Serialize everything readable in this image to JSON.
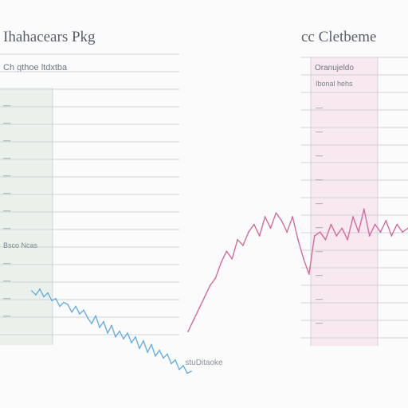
{
  "chart_data": [
    {
      "type": "line",
      "title": "Ihahacears Pkg",
      "subtitle": "Ch gthoe ltdxtba",
      "row_labels": [
        "—",
        "—",
        "—",
        "—",
        "—",
        "—",
        "—",
        "—",
        "Bsco Ncas",
        "—",
        "—",
        "—",
        "—"
      ],
      "grid": true,
      "panel_shade": "#e9f1ea",
      "series": [
        {
          "color": "#6aaee0",
          "x": [
            0,
            1,
            2,
            3,
            4,
            5,
            6,
            7,
            8,
            9,
            10,
            11,
            12,
            13,
            14,
            15,
            16,
            17,
            18,
            19,
            20,
            21,
            22,
            23,
            24,
            25,
            26,
            27,
            28,
            29,
            30,
            31,
            32,
            33,
            34,
            35,
            36,
            37,
            38,
            39,
            40
          ],
          "y": [
            52,
            50,
            53,
            49,
            51,
            47,
            48,
            44,
            46,
            45,
            41,
            44,
            40,
            42,
            38,
            35,
            39,
            33,
            36,
            30,
            34,
            28,
            31,
            27,
            30,
            25,
            28,
            22,
            26,
            20,
            24,
            18,
            21,
            17,
            19,
            14,
            16,
            11,
            13,
            9,
            10
          ]
        }
      ],
      "ylim": [
        0,
        100
      ]
    },
    {
      "type": "line",
      "title": "cc Cletbeme",
      "subtitle": "Oranujeldo",
      "row_labels": [
        "Ibonal hehs",
        "—",
        "—",
        "—",
        "—",
        "—",
        "—",
        "—",
        "—",
        "—",
        "—"
      ],
      "grid": true,
      "panel_shade": "#f8e8ef",
      "series": [
        {
          "color": "#d36b9d",
          "x": [
            0,
            1,
            2,
            3,
            4,
            5,
            6,
            7,
            8,
            9,
            10,
            11,
            12,
            13,
            14,
            15,
            16,
            17,
            18,
            19,
            20,
            21,
            22,
            23,
            24,
            25,
            26,
            27,
            28,
            29,
            30,
            31,
            32,
            33,
            34,
            35,
            36,
            37,
            38,
            39,
            40
          ],
          "y": [
            10,
            16,
            22,
            28,
            34,
            38,
            46,
            52,
            48,
            58,
            55,
            62,
            66,
            60,
            70,
            64,
            72,
            68,
            62,
            70,
            58,
            48,
            40,
            60,
            62,
            58,
            66,
            60,
            64,
            58,
            70,
            62,
            74,
            60,
            66,
            62,
            68,
            60,
            66,
            62,
            64
          ]
        }
      ],
      "ylim": [
        0,
        100
      ]
    }
  ],
  "footer": {
    "caption": "stuDitaoke"
  }
}
